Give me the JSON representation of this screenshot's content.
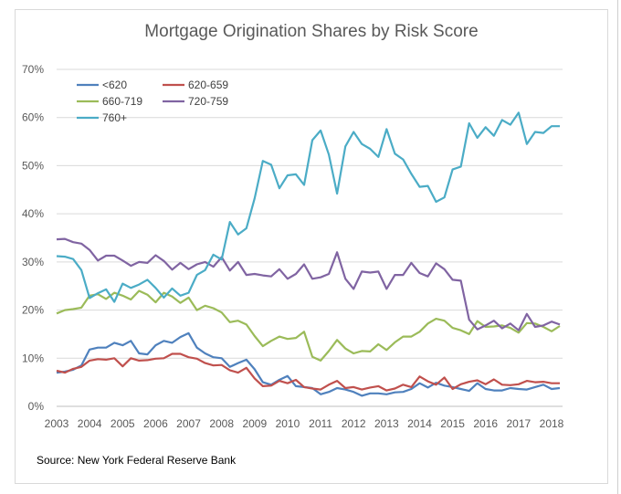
{
  "chart_data": {
    "type": "line",
    "title": "Mortgage Origination Shares by Risk Score",
    "source": "Source: New York Federal Reserve Bank",
    "xlabel": "",
    "ylabel": "",
    "xlim": [
      2003,
      2018.3
    ],
    "ylim": [
      0,
      70
    ],
    "x_ticks": [
      "2003",
      "2004",
      "2005",
      "2006",
      "2007",
      "2008",
      "2009",
      "2010",
      "2011",
      "2012",
      "2013",
      "2014",
      "2015",
      "2016",
      "2017",
      "2018"
    ],
    "y_ticks": [
      "0%",
      "10%",
      "20%",
      "30%",
      "40%",
      "50%",
      "60%",
      "70%"
    ],
    "grid": true,
    "legend_position": "top-left",
    "series": [
      {
        "name": "<620",
        "color": "#4f81bd",
        "x": [
          2003.0,
          2003.25,
          2003.5,
          2003.75,
          2004.0,
          2004.25,
          2004.5,
          2004.75,
          2005.0,
          2005.25,
          2005.5,
          2005.75,
          2006.0,
          2006.25,
          2006.5,
          2006.75,
          2007.0,
          2007.25,
          2007.5,
          2007.75,
          2008.0,
          2008.25,
          2008.5,
          2008.75,
          2009.0,
          2009.25,
          2009.5,
          2009.75,
          2010.0,
          2010.25,
          2010.5,
          2010.75,
          2011.0,
          2011.25,
          2011.5,
          2011.75,
          2012.0,
          2012.25,
          2012.5,
          2012.75,
          2013.0,
          2013.25,
          2013.5,
          2013.75,
          2014.0,
          2014.25,
          2014.5,
          2014.75,
          2015.0,
          2015.25,
          2015.5,
          2015.75,
          2016.0,
          2016.25,
          2016.5,
          2016.75,
          2017.0,
          2017.25,
          2017.5,
          2017.75,
          2018.0,
          2018.25
        ],
        "values": [
          7.0,
          7.2,
          7.6,
          8.5,
          11.8,
          12.2,
          12.2,
          13.2,
          12.7,
          13.6,
          11.0,
          10.8,
          12.7,
          13.6,
          13.2,
          14.4,
          15.2,
          12.2,
          11.0,
          10.2,
          10.0,
          8.2,
          9.0,
          9.7,
          7.7,
          5.0,
          4.5,
          5.5,
          6.3,
          4.2,
          4.0,
          3.8,
          2.5,
          3.0,
          3.8,
          3.5,
          3.0,
          2.2,
          2.7,
          2.7,
          2.5,
          2.9,
          3.0,
          3.6,
          4.8,
          3.9,
          4.9,
          4.3,
          4.0,
          3.6,
          3.2,
          4.8,
          3.6,
          3.3,
          3.3,
          3.8,
          3.6,
          3.5,
          4.0,
          4.5,
          3.6,
          3.8
        ]
      },
      {
        "name": "620-659",
        "color": "#c0504d",
        "x": [
          2003.0,
          2003.25,
          2003.5,
          2003.75,
          2004.0,
          2004.25,
          2004.5,
          2004.75,
          2005.0,
          2005.25,
          2005.5,
          2005.75,
          2006.0,
          2006.25,
          2006.5,
          2006.75,
          2007.0,
          2007.25,
          2007.5,
          2007.75,
          2008.0,
          2008.25,
          2008.5,
          2008.75,
          2009.0,
          2009.25,
          2009.5,
          2009.75,
          2010.0,
          2010.25,
          2010.5,
          2010.75,
          2011.0,
          2011.25,
          2011.5,
          2011.75,
          2012.0,
          2012.25,
          2012.5,
          2012.75,
          2013.0,
          2013.25,
          2013.5,
          2013.75,
          2014.0,
          2014.25,
          2014.5,
          2014.75,
          2015.0,
          2015.25,
          2015.5,
          2015.75,
          2016.0,
          2016.25,
          2016.5,
          2016.75,
          2017.0,
          2017.25,
          2017.5,
          2017.75,
          2018.0,
          2018.25
        ],
        "values": [
          7.4,
          7.0,
          7.8,
          8.2,
          9.5,
          9.8,
          9.7,
          10.0,
          8.3,
          10.0,
          9.5,
          9.6,
          9.9,
          10.0,
          10.9,
          10.9,
          10.2,
          9.9,
          9.0,
          8.5,
          8.6,
          7.5,
          7.0,
          8.0,
          5.8,
          4.2,
          4.3,
          5.3,
          4.8,
          5.5,
          4.0,
          3.7,
          3.5,
          4.5,
          5.3,
          3.8,
          4.0,
          3.5,
          3.9,
          4.2,
          3.3,
          3.7,
          4.5,
          4.0,
          6.2,
          5.2,
          4.5,
          6.0,
          3.6,
          4.6,
          5.1,
          5.4,
          4.6,
          5.6,
          4.5,
          4.4,
          4.6,
          5.3,
          5.0,
          5.1,
          4.8,
          4.8
        ]
      },
      {
        "name": "660-719",
        "color": "#9bbb59",
        "x": [
          2003.0,
          2003.25,
          2003.5,
          2003.75,
          2004.0,
          2004.25,
          2004.5,
          2004.75,
          2005.0,
          2005.25,
          2005.5,
          2005.75,
          2006.0,
          2006.25,
          2006.5,
          2006.75,
          2007.0,
          2007.25,
          2007.5,
          2007.75,
          2008.0,
          2008.25,
          2008.5,
          2008.75,
          2009.0,
          2009.25,
          2009.5,
          2009.75,
          2010.0,
          2010.25,
          2010.5,
          2010.75,
          2011.0,
          2011.25,
          2011.5,
          2011.75,
          2012.0,
          2012.25,
          2012.5,
          2012.75,
          2013.0,
          2013.25,
          2013.5,
          2013.75,
          2014.0,
          2014.25,
          2014.5,
          2014.75,
          2015.0,
          2015.25,
          2015.5,
          2015.75,
          2016.0,
          2016.25,
          2016.5,
          2016.75,
          2017.0,
          2017.25,
          2017.5,
          2017.75,
          2018.0,
          2018.25
        ],
        "values": [
          19.3,
          20.0,
          20.2,
          20.5,
          23.0,
          23.3,
          22.3,
          23.6,
          23.0,
          22.2,
          24.0,
          23.2,
          21.6,
          23.6,
          22.8,
          21.5,
          22.6,
          20.0,
          20.9,
          20.4,
          19.5,
          17.5,
          17.8,
          17.0,
          14.6,
          12.5,
          13.6,
          14.5,
          14.0,
          14.2,
          15.5,
          10.3,
          9.5,
          11.5,
          13.8,
          12.0,
          11.0,
          11.5,
          11.4,
          12.9,
          11.7,
          13.3,
          14.5,
          14.5,
          15.5,
          17.2,
          18.2,
          17.8,
          16.3,
          15.8,
          15.0,
          17.7,
          16.5,
          16.6,
          16.8,
          16.3,
          15.3,
          17.3,
          17.2,
          16.5,
          15.6,
          16.7
        ]
      },
      {
        "name": "720-759",
        "color": "#8064a2",
        "x": [
          2003.0,
          2003.25,
          2003.5,
          2003.75,
          2004.0,
          2004.25,
          2004.5,
          2004.75,
          2005.0,
          2005.25,
          2005.5,
          2005.75,
          2006.0,
          2006.25,
          2006.5,
          2006.75,
          2007.0,
          2007.25,
          2007.5,
          2007.75,
          2008.0,
          2008.25,
          2008.5,
          2008.75,
          2009.0,
          2009.25,
          2009.5,
          2009.75,
          2010.0,
          2010.25,
          2010.5,
          2010.75,
          2011.0,
          2011.25,
          2011.5,
          2011.75,
          2012.0,
          2012.25,
          2012.5,
          2012.75,
          2013.0,
          2013.25,
          2013.5,
          2013.75,
          2014.0,
          2014.25,
          2014.5,
          2014.75,
          2015.0,
          2015.25,
          2015.5,
          2015.75,
          2016.0,
          2016.25,
          2016.5,
          2016.75,
          2017.0,
          2017.25,
          2017.5,
          2017.75,
          2018.0,
          2018.25
        ],
        "values": [
          34.7,
          34.8,
          34.1,
          33.8,
          32.5,
          30.3,
          31.3,
          31.3,
          30.3,
          29.2,
          30.0,
          29.8,
          31.4,
          30.2,
          28.4,
          29.8,
          28.5,
          29.5,
          30.0,
          29.0,
          31.0,
          28.2,
          30.0,
          27.3,
          27.5,
          27.2,
          27.0,
          28.5,
          26.5,
          27.5,
          29.5,
          26.5,
          26.8,
          27.5,
          32.0,
          26.5,
          24.4,
          28.0,
          27.8,
          28.0,
          24.4,
          27.3,
          27.3,
          29.8,
          27.7,
          27.0,
          29.7,
          28.5,
          26.3,
          26.1,
          18.0,
          16.0,
          16.8,
          17.8,
          16.2,
          17.2,
          15.8,
          19.2,
          16.5,
          16.8,
          17.6,
          17.0
        ]
      },
      {
        "name": "760+",
        "color": "#4bacc6",
        "x": [
          2003.0,
          2003.25,
          2003.5,
          2003.75,
          2004.0,
          2004.25,
          2004.5,
          2004.75,
          2005.0,
          2005.25,
          2005.5,
          2005.75,
          2006.0,
          2006.25,
          2006.5,
          2006.75,
          2007.0,
          2007.25,
          2007.5,
          2007.75,
          2008.0,
          2008.25,
          2008.5,
          2008.75,
          2009.0,
          2009.25,
          2009.5,
          2009.75,
          2010.0,
          2010.25,
          2010.5,
          2010.75,
          2011.0,
          2011.25,
          2011.5,
          2011.75,
          2012.0,
          2012.25,
          2012.5,
          2012.75,
          2013.0,
          2013.25,
          2013.5,
          2013.75,
          2014.0,
          2014.25,
          2014.5,
          2014.75,
          2015.0,
          2015.25,
          2015.5,
          2015.75,
          2016.0,
          2016.25,
          2016.5,
          2016.75,
          2017.0,
          2017.25,
          2017.5,
          2017.75,
          2018.0,
          2018.25
        ],
        "values": [
          31.2,
          31.1,
          30.6,
          28.3,
          22.5,
          23.5,
          24.3,
          21.7,
          25.5,
          24.6,
          25.3,
          26.3,
          24.6,
          22.6,
          24.5,
          23.0,
          23.6,
          27.3,
          28.3,
          31.5,
          30.5,
          38.3,
          35.7,
          37.0,
          43.2,
          51.0,
          50.2,
          45.3,
          48.0,
          48.2,
          46.0,
          55.3,
          57.3,
          52.3,
          44.2,
          54.0,
          57.0,
          54.5,
          53.5,
          51.8,
          57.6,
          52.5,
          51.3,
          48.3,
          45.6,
          45.8,
          42.5,
          43.4,
          49.2,
          49.8,
          58.8,
          55.8,
          58.0,
          56.2,
          59.5,
          58.5,
          61.0,
          54.5,
          57.0,
          56.8,
          58.2,
          58.2
        ]
      }
    ]
  }
}
